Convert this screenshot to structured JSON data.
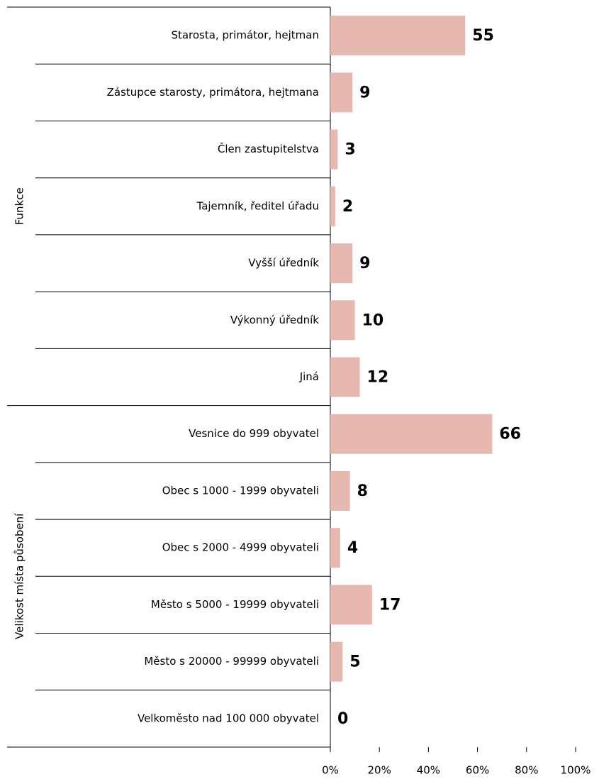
{
  "chart_data": {
    "type": "hbar",
    "categories": [
      "Starosta, primátor, hejtman",
      "Zástupce starosty, primátora, hejtmana",
      "Člen zastupitelstva",
      "Tajemník, ředitel úřadu",
      "Vyšší úředník",
      "Výkonný úředník",
      "Jiná",
      "Vesnice do 999 obyvatel",
      "Obec s 1000 - 1999 obyvateli",
      "Obec s 2000 - 4999 obyvateli",
      "Město s 5000 - 19999 obyvateli",
      "Město s 20000 - 99999 obyvateli",
      "Velkoměsto nad 100 000 obyvatel"
    ],
    "category_groups": [
      "Funkce",
      "Funkce",
      "Funkce",
      "Funkce",
      "Funkce",
      "Funkce",
      "Funkce",
      "Velikost místa působení",
      "Velikost místa působení",
      "Velikost místa působení",
      "Velikost místa působení",
      "Velikost místa působení",
      "Velikost místa působení"
    ],
    "values": [
      55,
      9,
      3,
      2,
      9,
      10,
      12,
      66,
      8,
      4,
      17,
      5,
      0
    ],
    "color": "#e6b8b0",
    "xlim": [
      0,
      100
    ],
    "xticks": [
      {
        "value": 0,
        "label": "0%"
      },
      {
        "value": 20,
        "label": "20%"
      },
      {
        "value": 40,
        "label": "40%"
      },
      {
        "value": 60,
        "label": "60%"
      },
      {
        "value": 80,
        "label": "80%"
      },
      {
        "value": 100,
        "label": "100%"
      }
    ]
  }
}
